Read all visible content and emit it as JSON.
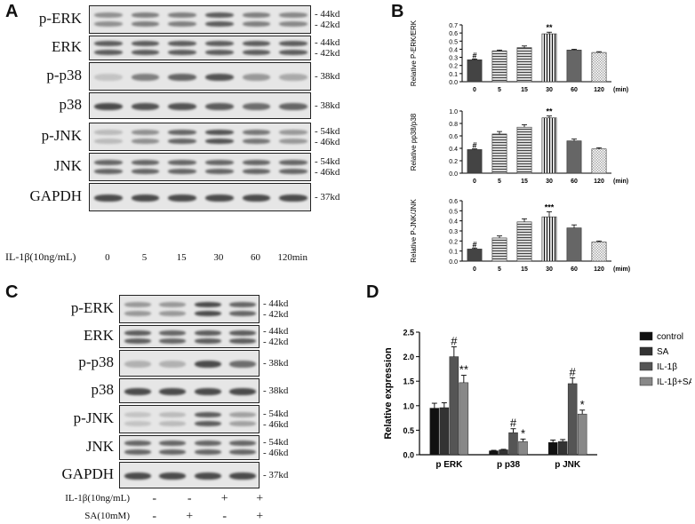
{
  "panels": {
    "A": "A",
    "B": "B",
    "C": "C",
    "D": "D"
  },
  "panelA": {
    "rows": [
      {
        "label": "p-ERK",
        "mw": [
          "44kd",
          "42kd"
        ]
      },
      {
        "label": "ERK",
        "mw": [
          "44kd",
          "42kd"
        ]
      },
      {
        "label": "p-p38",
        "mw": [
          "38kd"
        ]
      },
      {
        "label": "p38",
        "mw": [
          "38kd"
        ]
      },
      {
        "label": "p-JNK",
        "mw": [
          "54kd",
          "46kd"
        ]
      },
      {
        "label": "JNK",
        "mw": [
          "54kd",
          "46kd"
        ]
      },
      {
        "label": "GAPDH",
        "mw": [
          "37kd"
        ]
      }
    ],
    "treatment_label": "IL-1β(10ng/mL)",
    "timepoints": [
      "0",
      "5",
      "15",
      "30",
      "60",
      "120min"
    ]
  },
  "panelC": {
    "rows": [
      {
        "label": "p-ERK",
        "mw": [
          "44kd",
          "42kd"
        ]
      },
      {
        "label": "ERK",
        "mw": [
          "44kd",
          "42kd"
        ]
      },
      {
        "label": "p-p38",
        "mw": [
          "38kd"
        ]
      },
      {
        "label": "p38",
        "mw": [
          "38kd"
        ]
      },
      {
        "label": "p-JNK",
        "mw": [
          "54kd",
          "46kd"
        ]
      },
      {
        "label": "JNK",
        "mw": [
          "54kd",
          "46kd"
        ]
      },
      {
        "label": "GAPDH",
        "mw": [
          "37kd"
        ]
      }
    ],
    "conditions": [
      {
        "label": "IL-1β(10ng/mL)",
        "values": [
          "-",
          "-",
          "+",
          "+"
        ]
      },
      {
        "label": "SA(10mM)",
        "values": [
          "-",
          "+",
          "-",
          "+"
        ]
      }
    ]
  },
  "chart_data": [
    {
      "type": "bar",
      "panel": "B1",
      "ylabel": "Relative P-ERK/ERK",
      "categories": [
        "0",
        "5",
        "15",
        "30",
        "60",
        "120"
      ],
      "xunit": "(min)",
      "values": [
        0.27,
        0.38,
        0.42,
        0.59,
        0.39,
        0.36
      ],
      "errors": [
        0.01,
        0.01,
        0.02,
        0.02,
        0.01,
        0.01
      ],
      "annotations": [
        "#",
        "",
        "",
        "**",
        "",
        ""
      ],
      "ylim": [
        0,
        0.7
      ],
      "yticks": [
        "0.0",
        "0.1",
        "0.2",
        "0.3",
        "0.4",
        "0.5",
        "0.6",
        "0.7"
      ]
    },
    {
      "type": "bar",
      "panel": "B2",
      "ylabel": "Relative pp38/p38",
      "categories": [
        "0",
        "5",
        "15",
        "30",
        "60",
        "120"
      ],
      "xunit": "(min)",
      "values": [
        0.38,
        0.63,
        0.74,
        0.89,
        0.52,
        0.39
      ],
      "errors": [
        0.01,
        0.04,
        0.04,
        0.03,
        0.03,
        0.02
      ],
      "annotations": [
        "#",
        "",
        "",
        "**",
        "",
        ""
      ],
      "ylim": [
        0,
        1.0
      ],
      "yticks": [
        "0.0",
        "0.2",
        "0.4",
        "0.6",
        "0.8",
        "1.0"
      ]
    },
    {
      "type": "bar",
      "panel": "B3",
      "ylabel": "Relative P-JNK/JNK",
      "categories": [
        "0",
        "5",
        "15",
        "30",
        "60",
        "120"
      ],
      "xunit": "(mim)",
      "values": [
        0.12,
        0.23,
        0.39,
        0.44,
        0.33,
        0.19
      ],
      "errors": [
        0.01,
        0.02,
        0.03,
        0.05,
        0.03,
        0.01
      ],
      "annotations": [
        "#",
        "",
        "",
        "***",
        "",
        ""
      ],
      "ylim": [
        0,
        0.6
      ],
      "yticks": [
        "0.0",
        "0.1",
        "0.2",
        "0.3",
        "0.4",
        "0.5",
        "0.6"
      ]
    },
    {
      "type": "bar",
      "panel": "D",
      "ylabel": "Relative expression",
      "categories": [
        "p ERK",
        "p p38",
        "p JNK"
      ],
      "ylim": [
        0,
        2.5
      ],
      "yticks": [
        "0.0",
        "0.5",
        "1.0",
        "1.5",
        "2.0",
        "2.5"
      ],
      "series": [
        {
          "name": "control",
          "values": [
            0.95,
            0.08,
            0.25
          ],
          "errors": [
            0.1,
            0.01,
            0.05
          ],
          "annotations": [
            "",
            "",
            ""
          ]
        },
        {
          "name": "SA",
          "values": [
            0.96,
            0.1,
            0.27
          ],
          "errors": [
            0.1,
            0.01,
            0.04
          ],
          "annotations": [
            "",
            "",
            ""
          ]
        },
        {
          "name": "IL-1β",
          "values": [
            2.0,
            0.45,
            1.45
          ],
          "errors": [
            0.2,
            0.08,
            0.12
          ],
          "annotations": [
            "#",
            "#",
            "#"
          ]
        },
        {
          "name": "IL-1β+SA",
          "values": [
            1.47,
            0.27,
            0.83
          ],
          "errors": [
            0.15,
            0.05,
            0.08
          ],
          "annotations": [
            "**",
            "*",
            "*"
          ]
        }
      ]
    }
  ]
}
